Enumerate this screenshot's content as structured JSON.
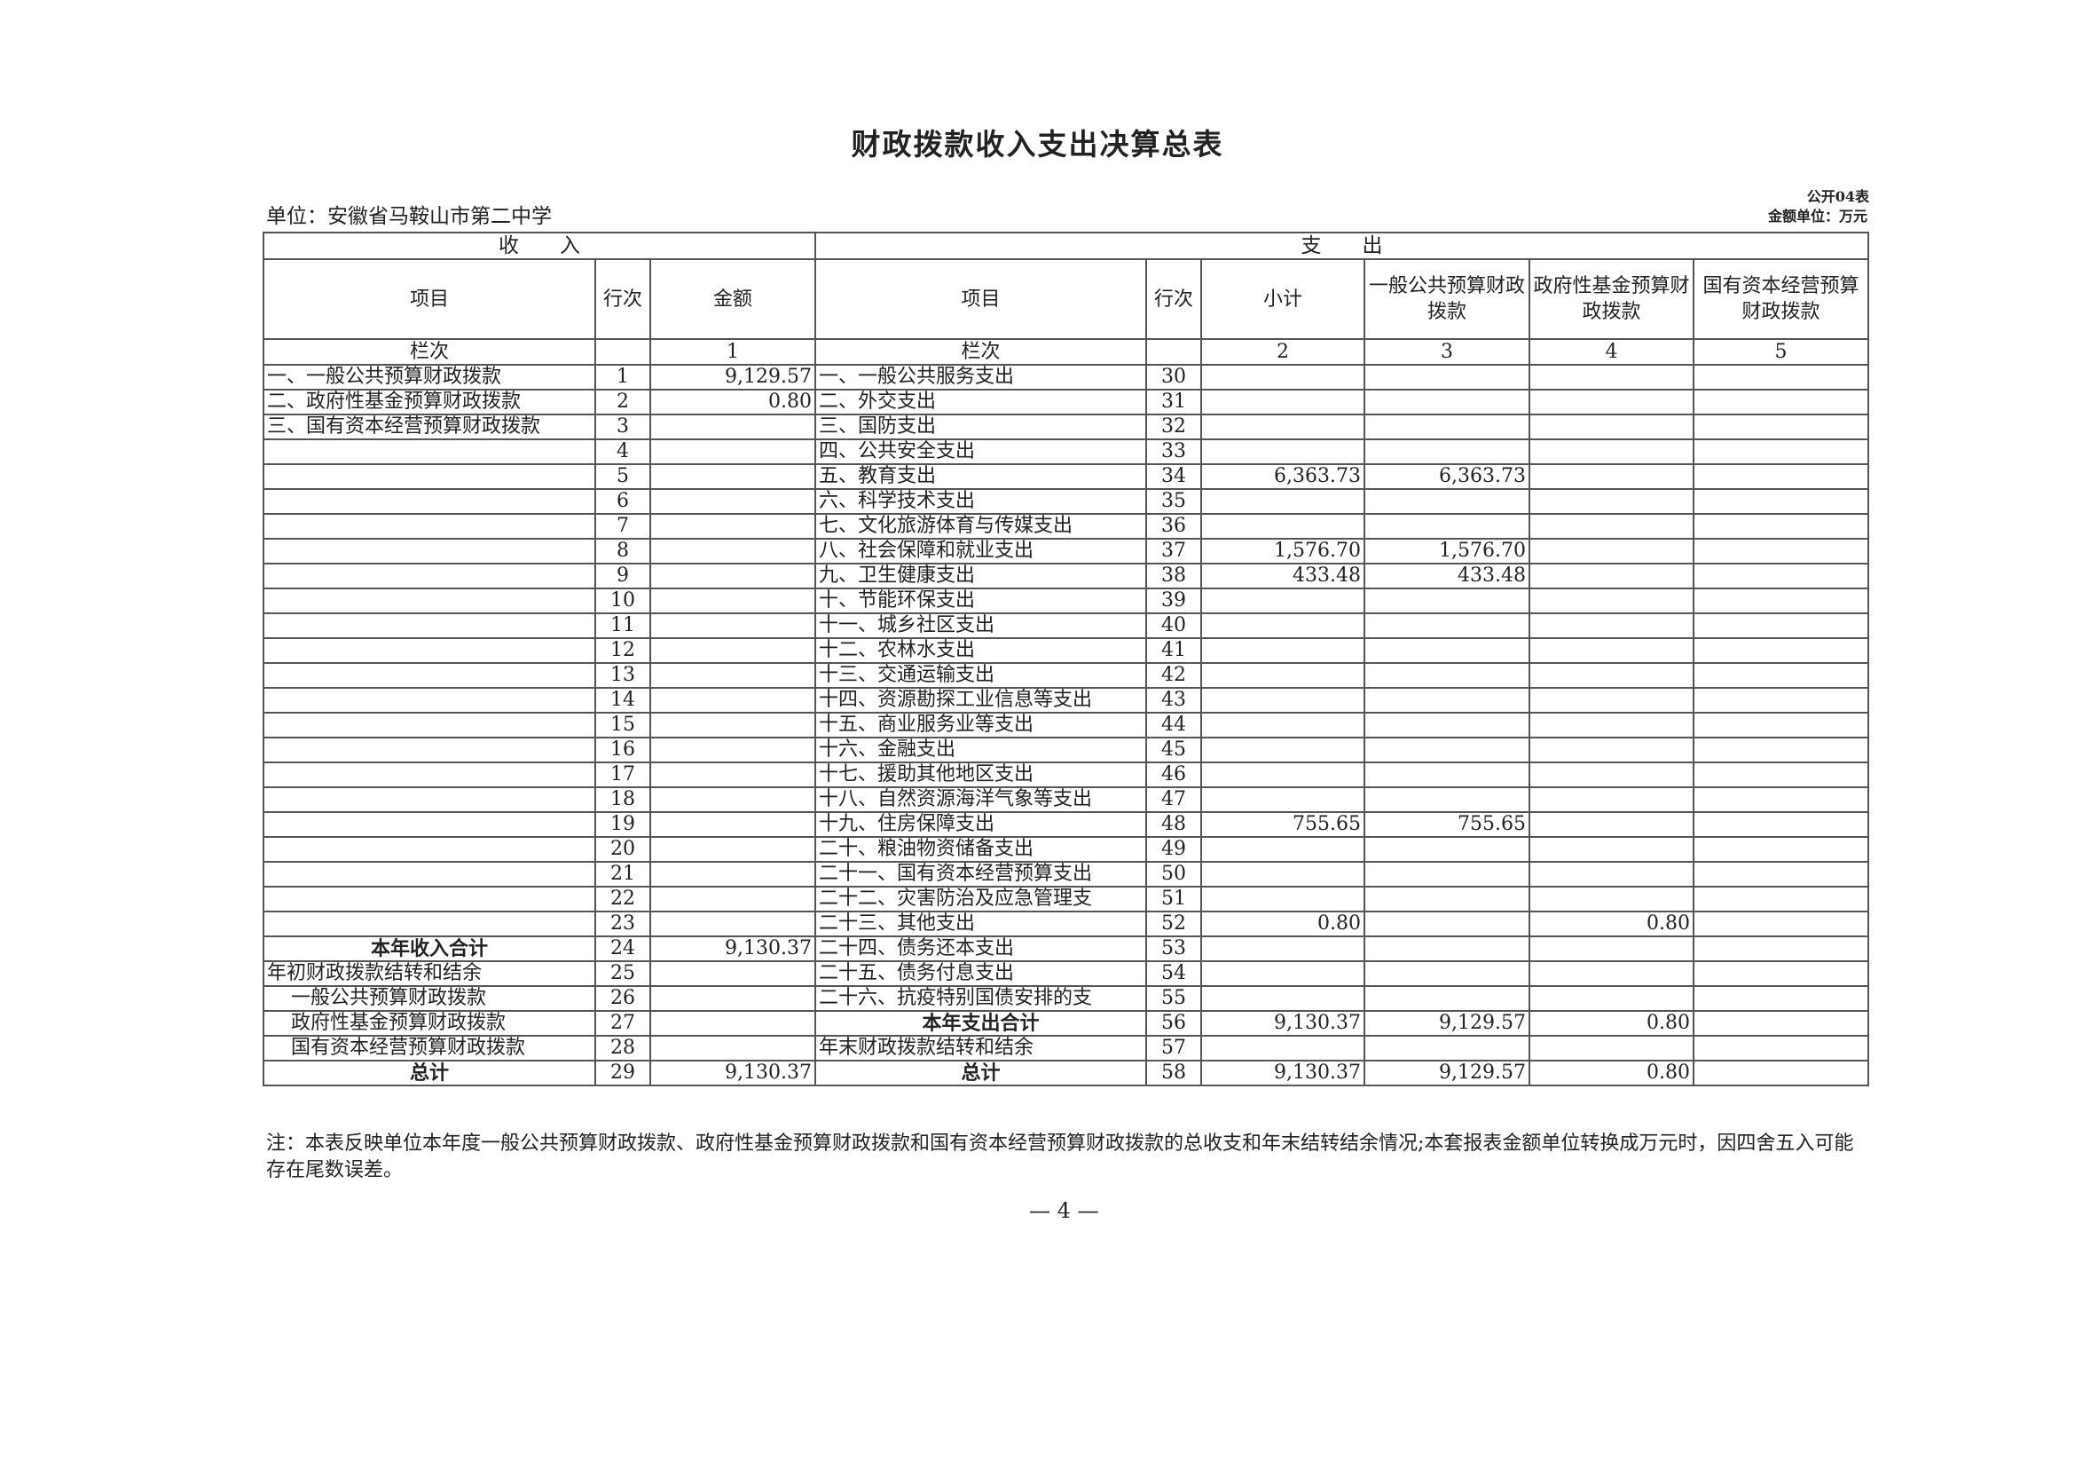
{
  "title": "财政拨款收入支出决算总表",
  "unit_label": "单位：安徽省马鞍山市第二中学",
  "form_no": "公开04表",
  "money_unit": "金额单位：万元",
  "headers": {
    "income": "收　　入",
    "expense": "支　　出",
    "item": "项目",
    "row_no": "行次",
    "amount": "金额",
    "exp_item": "项目",
    "exp_row_no": "行次",
    "subtotal": "小计",
    "general": "一般公共预算财政拨款",
    "gov_fund": "政府性基金预算财政拨款",
    "state_capital": "国有资本经营预算财政拨款",
    "col_label": "栏次",
    "col_1": "1",
    "exp_col_label": "栏次",
    "col_2": "2",
    "col_3": "3",
    "col_4": "4",
    "col_5": "5"
  },
  "rows": [
    {
      "in_item": "一、一般公共预算财政拨款",
      "in_no": "1",
      "in_amt": "9,129.57",
      "ex_item": "一、一般公共服务支出",
      "ex_no": "30",
      "sub": "",
      "gen": "",
      "fund": "",
      "cap": ""
    },
    {
      "in_item": "二、政府性基金预算财政拨款",
      "in_no": "2",
      "in_amt": "0.80",
      "ex_item": "二、外交支出",
      "ex_no": "31",
      "sub": "",
      "gen": "",
      "fund": "",
      "cap": ""
    },
    {
      "in_item": "三、国有资本经营预算财政拨款",
      "in_no": "3",
      "in_amt": "",
      "ex_item": "三、国防支出",
      "ex_no": "32",
      "sub": "",
      "gen": "",
      "fund": "",
      "cap": ""
    },
    {
      "in_item": "",
      "in_no": "4",
      "in_amt": "",
      "ex_item": "四、公共安全支出",
      "ex_no": "33",
      "sub": "",
      "gen": "",
      "fund": "",
      "cap": ""
    },
    {
      "in_item": "",
      "in_no": "5",
      "in_amt": "",
      "ex_item": "五、教育支出",
      "ex_no": "34",
      "sub": "6,363.73",
      "gen": "6,363.73",
      "fund": "",
      "cap": ""
    },
    {
      "in_item": "",
      "in_no": "6",
      "in_amt": "",
      "ex_item": "六、科学技术支出",
      "ex_no": "35",
      "sub": "",
      "gen": "",
      "fund": "",
      "cap": ""
    },
    {
      "in_item": "",
      "in_no": "7",
      "in_amt": "",
      "ex_item": "七、文化旅游体育与传媒支出",
      "ex_no": "36",
      "sub": "",
      "gen": "",
      "fund": "",
      "cap": ""
    },
    {
      "in_item": "",
      "in_no": "8",
      "in_amt": "",
      "ex_item": "八、社会保障和就业支出",
      "ex_no": "37",
      "sub": "1,576.70",
      "gen": "1,576.70",
      "fund": "",
      "cap": ""
    },
    {
      "in_item": "",
      "in_no": "9",
      "in_amt": "",
      "ex_item": "九、卫生健康支出",
      "ex_no": "38",
      "sub": "433.48",
      "gen": "433.48",
      "fund": "",
      "cap": ""
    },
    {
      "in_item": "",
      "in_no": "10",
      "in_amt": "",
      "ex_item": "十、节能环保支出",
      "ex_no": "39",
      "sub": "",
      "gen": "",
      "fund": "",
      "cap": ""
    },
    {
      "in_item": "",
      "in_no": "11",
      "in_amt": "",
      "ex_item": "十一、城乡社区支出",
      "ex_no": "40",
      "sub": "",
      "gen": "",
      "fund": "",
      "cap": ""
    },
    {
      "in_item": "",
      "in_no": "12",
      "in_amt": "",
      "ex_item": "十二、农林水支出",
      "ex_no": "41",
      "sub": "",
      "gen": "",
      "fund": "",
      "cap": ""
    },
    {
      "in_item": "",
      "in_no": "13",
      "in_amt": "",
      "ex_item": "十三、交通运输支出",
      "ex_no": "42",
      "sub": "",
      "gen": "",
      "fund": "",
      "cap": ""
    },
    {
      "in_item": "",
      "in_no": "14",
      "in_amt": "",
      "ex_item": "十四、资源勘探工业信息等支出",
      "ex_no": "43",
      "sub": "",
      "gen": "",
      "fund": "",
      "cap": ""
    },
    {
      "in_item": "",
      "in_no": "15",
      "in_amt": "",
      "ex_item": "十五、商业服务业等支出",
      "ex_no": "44",
      "sub": "",
      "gen": "",
      "fund": "",
      "cap": ""
    },
    {
      "in_item": "",
      "in_no": "16",
      "in_amt": "",
      "ex_item": "十六、金融支出",
      "ex_no": "45",
      "sub": "",
      "gen": "",
      "fund": "",
      "cap": ""
    },
    {
      "in_item": "",
      "in_no": "17",
      "in_amt": "",
      "ex_item": "十七、援助其他地区支出",
      "ex_no": "46",
      "sub": "",
      "gen": "",
      "fund": "",
      "cap": ""
    },
    {
      "in_item": "",
      "in_no": "18",
      "in_amt": "",
      "ex_item": "十八、自然资源海洋气象等支出",
      "ex_no": "47",
      "sub": "",
      "gen": "",
      "fund": "",
      "cap": ""
    },
    {
      "in_item": "",
      "in_no": "19",
      "in_amt": "",
      "ex_item": "十九、住房保障支出",
      "ex_no": "48",
      "sub": "755.65",
      "gen": "755.65",
      "fund": "",
      "cap": ""
    },
    {
      "in_item": "",
      "in_no": "20",
      "in_amt": "",
      "ex_item": "二十、粮油物资储备支出",
      "ex_no": "49",
      "sub": "",
      "gen": "",
      "fund": "",
      "cap": ""
    },
    {
      "in_item": "",
      "in_no": "21",
      "in_amt": "",
      "ex_item": "二十一、国有资本经营预算支出",
      "ex_no": "50",
      "sub": "",
      "gen": "",
      "fund": "",
      "cap": ""
    },
    {
      "in_item": "",
      "in_no": "22",
      "in_amt": "",
      "ex_item": "二十二、灾害防治及应急管理支",
      "ex_no": "51",
      "sub": "",
      "gen": "",
      "fund": "",
      "cap": ""
    },
    {
      "in_item": "",
      "in_no": "23",
      "in_amt": "",
      "ex_item": "二十三、其他支出",
      "ex_no": "52",
      "sub": "0.80",
      "gen": "",
      "fund": "0.80",
      "cap": ""
    },
    {
      "in_item": "本年收入合计",
      "in_no": "24",
      "in_amt": "9,130.37",
      "ex_item": "二十四、债务还本支出",
      "ex_no": "53",
      "sub": "",
      "gen": "",
      "fund": "",
      "cap": "",
      "in_style": "total"
    },
    {
      "in_item": "年初财政拨款结转和结余",
      "in_no": "25",
      "in_amt": "",
      "ex_item": "二十五、债务付息支出",
      "ex_no": "54",
      "sub": "",
      "gen": "",
      "fund": "",
      "cap": ""
    },
    {
      "in_item": "一般公共预算财政拨款",
      "in_no": "26",
      "in_amt": "",
      "ex_item": "二十六、抗疫特别国债安排的支",
      "ex_no": "55",
      "sub": "",
      "gen": "",
      "fund": "",
      "cap": "",
      "in_style": "indent"
    },
    {
      "in_item": "政府性基金预算财政拨款",
      "in_no": "27",
      "in_amt": "",
      "ex_item": "本年支出合计",
      "ex_no": "56",
      "sub": "9,130.37",
      "gen": "9,129.57",
      "fund": "0.80",
      "cap": "",
      "in_style": "indent",
      "ex_style": "total"
    },
    {
      "in_item": "国有资本经营预算财政拨款",
      "in_no": "28",
      "in_amt": "",
      "ex_item": "年末财政拨款结转和结余",
      "ex_no": "57",
      "sub": "",
      "gen": "",
      "fund": "",
      "cap": "",
      "in_style": "indent"
    },
    {
      "in_item": "总计",
      "in_no": "29",
      "in_amt": "9,130.37",
      "ex_item": "总计",
      "ex_no": "58",
      "sub": "9,130.37",
      "gen": "9,129.57",
      "fund": "0.80",
      "cap": "",
      "in_style": "total",
      "ex_style": "total"
    }
  ],
  "note": "注：本表反映单位本年度一般公共预算财政拨款、政府性基金预算财政拨款和国有资本经营预算财政拨款的总收支和年末结转结余情况;本套报表金额单位转换成万元时，因四舍五入可能存在尾数误差。",
  "page_number": "— 4 —"
}
